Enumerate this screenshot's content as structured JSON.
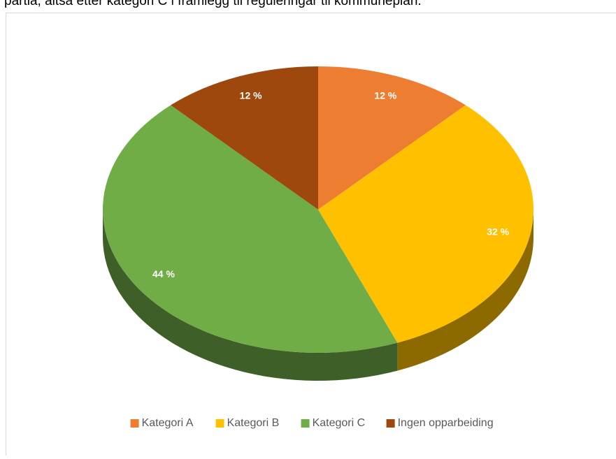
{
  "intro_text": "partia, altså etter kategori C i framlegg til reguleringar til kommuneplan.",
  "chart_data": {
    "type": "pie",
    "categories": [
      "Kategori A",
      "Kategori B",
      "Kategori C",
      "Ingen opparbeiding"
    ],
    "values": [
      12,
      32,
      44,
      12
    ],
    "value_labels": [
      "12 %",
      "32 %",
      "44 %",
      "12 %"
    ],
    "colors": [
      "#ed7d31",
      "#ffc000",
      "#70ad47",
      "#9e480e"
    ],
    "legend": "bottom"
  }
}
